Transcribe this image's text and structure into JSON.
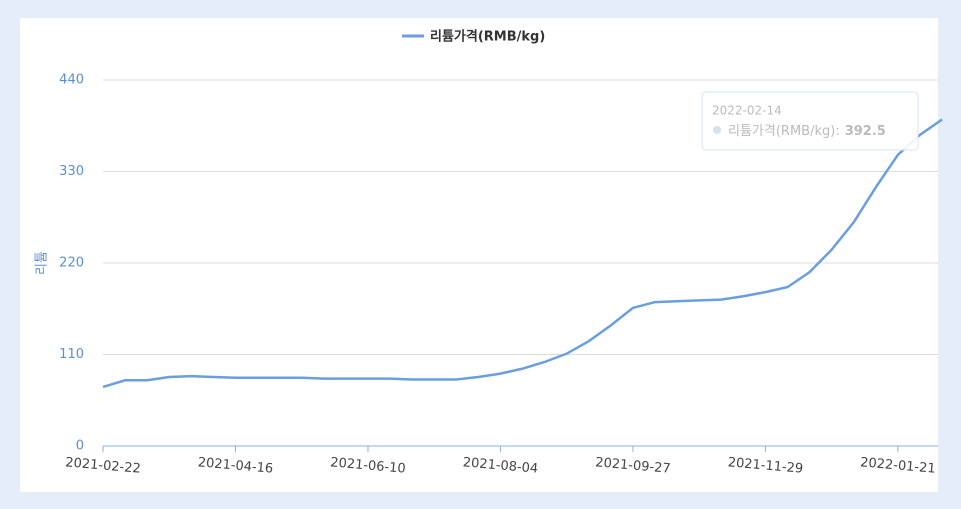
{
  "chart_data": {
    "type": "line",
    "ylabel": "리튬",
    "categories": [
      "2021-02-22",
      null,
      null,
      null,
      null,
      null,
      "2021-04-16",
      null,
      null,
      null,
      null,
      null,
      "2021-06-10",
      null,
      null,
      null,
      null,
      null,
      "2021-08-04",
      null,
      null,
      null,
      null,
      null,
      "2021-09-27",
      null,
      null,
      null,
      null,
      null,
      "2021-11-29",
      null,
      null,
      null,
      null,
      null,
      "2022-01-21",
      null,
      null
    ],
    "series": [
      {
        "name": "리튬가격(RMB/kg)",
        "color": "#6a9ee0",
        "values": [
          71,
          79,
          79,
          83,
          84,
          83,
          82,
          82,
          82,
          82,
          81,
          81,
          81,
          81,
          80,
          80,
          80,
          83,
          87,
          93,
          101,
          111,
          126,
          145,
          166,
          173,
          174,
          175,
          176,
          180,
          185,
          191,
          209,
          236,
          269,
          311,
          350,
          374,
          392.5
        ]
      }
    ],
    "ylim": [
      0,
      440
    ],
    "yticks": [
      0,
      110,
      220,
      330,
      440
    ],
    "grid": true,
    "tooltip": {
      "date": "2022-02-14",
      "separator": ":"
    }
  }
}
